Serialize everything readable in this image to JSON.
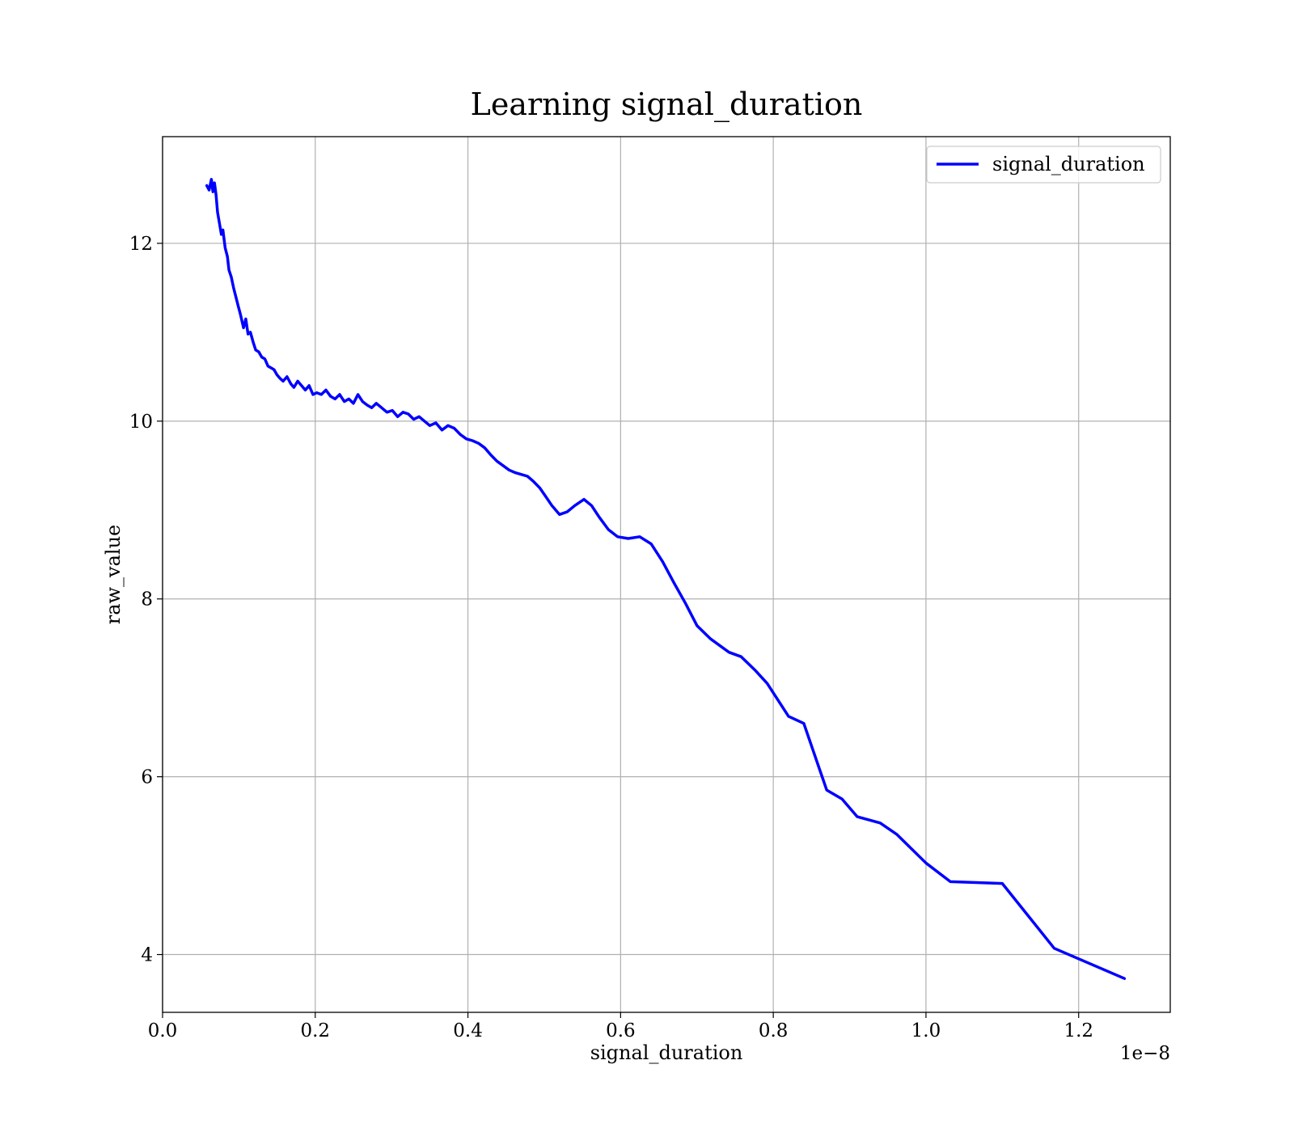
{
  "chart_data": {
    "type": "line",
    "title": "Learning signal_duration",
    "xlabel": "signal_duration",
    "ylabel": "raw_value",
    "x_offset_text": "1e−8",
    "xlim": [
      0.0,
      1.32e-08
    ],
    "ylim": [
      3.35,
      13.2
    ],
    "x_ticks": [
      0.0,
      2e-09,
      4e-09,
      6e-09,
      8e-09,
      1e-08,
      1.2e-08
    ],
    "x_tick_labels": [
      "0.0",
      "0.2",
      "0.4",
      "0.6",
      "0.8",
      "1.0",
      "1.2"
    ],
    "y_ticks": [
      4,
      6,
      8,
      10,
      12
    ],
    "y_tick_labels": [
      "4",
      "6",
      "8",
      "10",
      "12"
    ],
    "grid": true,
    "legend_position": "top-right",
    "colors": {
      "series": "#0000ff"
    },
    "series": [
      {
        "name": "signal_duration",
        "x": [
          5.8e-10,
          6.1e-10,
          6.4e-10,
          6.6e-10,
          6.8e-10,
          7e-10,
          7.2e-10,
          7.4e-10,
          7.7e-10,
          7.9e-10,
          8.2e-10,
          8.5e-10,
          8.7e-10,
          9e-10,
          9.3e-10,
          9.6e-10,
          9.9e-10,
          1.02e-09,
          1.06e-09,
          1.09e-09,
          1.12e-09,
          1.15e-09,
          1.19e-09,
          1.22e-09,
          1.26e-09,
          1.3e-09,
          1.34e-09,
          1.38e-09,
          1.42e-09,
          1.46e-09,
          1.5e-09,
          1.54e-09,
          1.58e-09,
          1.63e-09,
          1.68e-09,
          1.72e-09,
          1.77e-09,
          1.82e-09,
          1.87e-09,
          1.92e-09,
          1.97e-09,
          2.02e-09,
          2.08e-09,
          2.14e-09,
          2.2e-09,
          2.26e-09,
          2.32e-09,
          2.38e-09,
          2.44e-09,
          2.5e-09,
          2.56e-09,
          2.62e-09,
          2.68e-09,
          2.74e-09,
          2.8e-09,
          2.87e-09,
          2.94e-09,
          3.01e-09,
          3.08e-09,
          3.15e-09,
          3.22e-09,
          3.29e-09,
          3.36e-09,
          3.43e-09,
          3.5e-09,
          3.58e-09,
          3.66e-09,
          3.74e-09,
          3.82e-09,
          3.9e-09,
          3.98e-09,
          4.06e-09,
          4.14e-09,
          4.22e-09,
          4.3e-09,
          4.38e-09,
          4.46e-09,
          4.54e-09,
          4.62e-09,
          4.7e-09,
          4.78e-09,
          4.86e-09,
          4.94e-09,
          5.02e-09,
          5.1e-09,
          5.2e-09,
          5.3e-09,
          5.4e-09,
          5.52e-09,
          5.62e-09,
          5.72e-09,
          5.84e-09,
          5.96e-09,
          6.1e-09,
          6.25e-09,
          6.4e-09,
          6.55e-09,
          6.7e-09,
          6.85e-09,
          7e-09,
          7.18e-09,
          7.42e-09,
          7.58e-09,
          7.76e-09,
          7.92e-09,
          8.2e-09,
          8.4e-09,
          8.7e-09,
          8.9e-09,
          9.1e-09,
          9.4e-09,
          9.62e-09,
          1e-08,
          1.032e-08,
          1.1e-08,
          1.168e-08,
          1.26e-08
        ],
        "values": [
          12.65,
          12.6,
          12.72,
          12.58,
          12.68,
          12.55,
          12.35,
          12.25,
          12.1,
          12.15,
          11.95,
          11.85,
          11.7,
          11.62,
          11.5,
          11.4,
          11.3,
          11.2,
          11.05,
          11.15,
          10.98,
          11.0,
          10.88,
          10.8,
          10.78,
          10.72,
          10.7,
          10.62,
          10.6,
          10.58,
          10.52,
          10.48,
          10.45,
          10.5,
          10.42,
          10.38,
          10.45,
          10.4,
          10.35,
          10.4,
          10.3,
          10.32,
          10.3,
          10.35,
          10.28,
          10.25,
          10.3,
          10.22,
          10.25,
          10.2,
          10.3,
          10.22,
          10.18,
          10.15,
          10.2,
          10.15,
          10.1,
          10.12,
          10.05,
          10.1,
          10.08,
          10.02,
          10.05,
          10.0,
          9.95,
          9.98,
          9.9,
          9.95,
          9.92,
          9.85,
          9.8,
          9.78,
          9.75,
          9.7,
          9.62,
          9.55,
          9.5,
          9.45,
          9.42,
          9.4,
          9.38,
          9.32,
          9.25,
          9.15,
          9.05,
          8.95,
          8.98,
          9.05,
          9.12,
          9.05,
          8.92,
          8.78,
          8.7,
          8.68,
          8.7,
          8.62,
          8.42,
          8.18,
          7.95,
          7.7,
          7.55,
          7.4,
          7.35,
          7.2,
          7.05,
          6.68,
          6.6,
          5.85,
          5.75,
          5.55,
          5.48,
          5.35,
          5.03,
          4.82,
          4.8,
          4.07,
          3.73
        ]
      }
    ]
  }
}
